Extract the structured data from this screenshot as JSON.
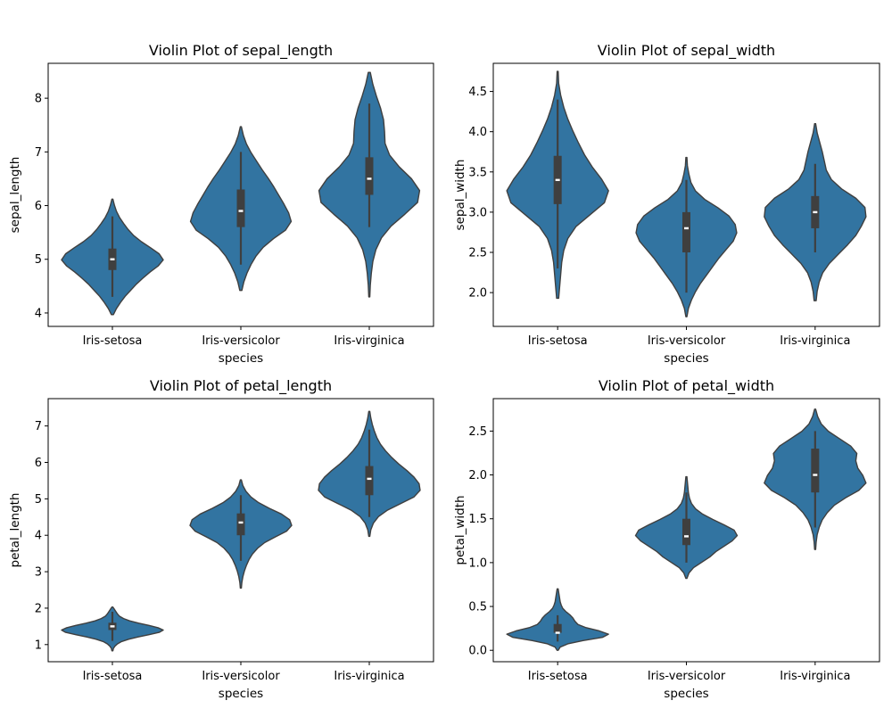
{
  "style": {
    "violin_fill": "#3274a1",
    "outline": "#3f3f3f",
    "box": "#3f3f3f",
    "median": "#ffffff"
  },
  "chart_data": [
    {
      "type": "violin",
      "title": "Violin Plot of sepal_length",
      "xlabel": "species",
      "ylabel": "sepal_length",
      "categories": [
        "Iris-setosa",
        "Iris-versicolor",
        "Iris-virginica"
      ],
      "ylim": [
        3.75,
        8.65
      ],
      "yticks": [
        4,
        5,
        6,
        7,
        8
      ],
      "yticklabels": [
        "4",
        "5",
        "6",
        "7",
        "8"
      ],
      "grid": false,
      "violins": [
        {
          "category": "Iris-setosa",
          "kde_range": [
            3.97,
            6.12
          ],
          "density": [
            0.02,
            0.08,
            0.16,
            0.25,
            0.36,
            0.47,
            0.6,
            0.74,
            0.9,
            1.0,
            0.92,
            0.75,
            0.57,
            0.42,
            0.31,
            0.22,
            0.14,
            0.08,
            0.04,
            0.01
          ],
          "min": 4.3,
          "q1": 4.8,
          "median": 5.0,
          "q3": 5.2,
          "max": 5.8
        },
        {
          "category": "Iris-versicolor",
          "kde_range": [
            4.42,
            7.47
          ],
          "density": [
            0.02,
            0.06,
            0.12,
            0.2,
            0.3,
            0.44,
            0.64,
            0.88,
            0.99,
            0.94,
            0.85,
            0.75,
            0.65,
            0.54,
            0.42,
            0.31,
            0.2,
            0.11,
            0.05,
            0.01
          ],
          "min": 4.9,
          "q1": 5.6,
          "median": 5.9,
          "q3": 6.3,
          "max": 7.0
        },
        {
          "category": "Iris-virginica",
          "kde_range": [
            4.3,
            8.48
          ],
          "density": [
            0.01,
            0.02,
            0.04,
            0.07,
            0.13,
            0.24,
            0.43,
            0.7,
            0.95,
            0.99,
            0.83,
            0.59,
            0.4,
            0.31,
            0.3,
            0.28,
            0.22,
            0.14,
            0.07,
            0.02
          ],
          "min": 5.6,
          "q1": 6.2,
          "median": 6.5,
          "q3": 6.9,
          "max": 7.9
        }
      ]
    },
    {
      "type": "violin",
      "title": "Violin Plot of sepal_width",
      "xlabel": "species",
      "ylabel": "sepal_width",
      "categories": [
        "Iris-setosa",
        "Iris-versicolor",
        "Iris-virginica"
      ],
      "ylim": [
        1.58,
        4.85
      ],
      "yticks": [
        2.0,
        2.5,
        3.0,
        3.5,
        4.0,
        4.5
      ],
      "yticklabels": [
        "2.0",
        "2.5",
        "3.0",
        "3.5",
        "4.0",
        "4.5"
      ],
      "grid": false,
      "violins": [
        {
          "category": "Iris-setosa",
          "kde_range": [
            1.93,
            4.75
          ],
          "density": [
            0.02,
            0.04,
            0.06,
            0.08,
            0.12,
            0.2,
            0.36,
            0.64,
            0.92,
            1.0,
            0.86,
            0.68,
            0.53,
            0.41,
            0.3,
            0.2,
            0.12,
            0.06,
            0.02,
            0.01
          ],
          "min": 2.3,
          "q1": 3.1,
          "median": 3.4,
          "q3": 3.7,
          "max": 4.4
        },
        {
          "category": "Iris-versicolor",
          "kde_range": [
            1.7,
            3.68
          ],
          "density": [
            0.01,
            0.04,
            0.1,
            0.18,
            0.28,
            0.4,
            0.52,
            0.64,
            0.78,
            0.92,
            0.99,
            0.96,
            0.84,
            0.62,
            0.36,
            0.18,
            0.09,
            0.05,
            0.02,
            0.01
          ],
          "min": 2.0,
          "q1": 2.5,
          "median": 2.8,
          "q3": 3.0,
          "max": 3.4
        },
        {
          "category": "Iris-virginica",
          "kde_range": [
            1.9,
            4.1
          ],
          "density": [
            0.02,
            0.04,
            0.08,
            0.15,
            0.28,
            0.46,
            0.64,
            0.8,
            0.91,
            1.0,
            0.98,
            0.8,
            0.52,
            0.32,
            0.22,
            0.18,
            0.14,
            0.09,
            0.04,
            0.01
          ],
          "min": 2.5,
          "q1": 2.8,
          "median": 3.0,
          "q3": 3.2,
          "max": 3.6
        }
      ]
    },
    {
      "type": "violin",
      "title": "Violin Plot of petal_length",
      "xlabel": "species",
      "ylabel": "petal_length",
      "categories": [
        "Iris-setosa",
        "Iris-versicolor",
        "Iris-virginica"
      ],
      "ylim": [
        0.53,
        7.75
      ],
      "yticks": [
        1,
        2,
        3,
        4,
        5,
        6,
        7
      ],
      "yticklabels": [
        "1",
        "2",
        "3",
        "4",
        "5",
        "6",
        "7"
      ],
      "grid": false,
      "violins": [
        {
          "category": "Iris-setosa",
          "kde_range": [
            0.83,
            2.03
          ],
          "density": [
            0.01,
            0.02,
            0.05,
            0.1,
            0.18,
            0.32,
            0.5,
            0.72,
            0.92,
            1.0,
            0.9,
            0.72,
            0.52,
            0.34,
            0.22,
            0.14,
            0.1,
            0.07,
            0.04,
            0.01
          ],
          "min": 1.1,
          "q1": 1.4,
          "median": 1.5,
          "q3": 1.6,
          "max": 1.9
        },
        {
          "category": "Iris-versicolor",
          "kde_range": [
            2.55,
            5.52
          ],
          "density": [
            0.01,
            0.02,
            0.04,
            0.07,
            0.11,
            0.16,
            0.23,
            0.33,
            0.47,
            0.68,
            0.9,
            1.0,
            0.96,
            0.8,
            0.56,
            0.35,
            0.2,
            0.1,
            0.04,
            0.01
          ],
          "min": 3.3,
          "q1": 4.0,
          "median": 4.35,
          "q3": 4.6,
          "max": 5.1
        },
        {
          "category": "Iris-virginica",
          "kde_range": [
            3.97,
            7.4
          ],
          "density": [
            0.01,
            0.03,
            0.08,
            0.18,
            0.36,
            0.62,
            0.88,
            1.0,
            0.98,
            0.88,
            0.74,
            0.58,
            0.44,
            0.32,
            0.22,
            0.15,
            0.1,
            0.06,
            0.03,
            0.01
          ],
          "min": 4.5,
          "q1": 5.1,
          "median": 5.55,
          "q3": 5.9,
          "max": 6.9
        }
      ]
    },
    {
      "type": "violin",
      "title": "Violin Plot of petal_width",
      "xlabel": "species",
      "ylabel": "petal_width",
      "categories": [
        "Iris-setosa",
        "Iris-versicolor",
        "Iris-virginica"
      ],
      "ylim": [
        -0.13,
        2.87
      ],
      "yticks": [
        0.0,
        0.5,
        1.0,
        1.5,
        2.0,
        2.5
      ],
      "yticklabels": [
        "0.0",
        "0.5",
        "1.0",
        "1.5",
        "2.0",
        "2.5"
      ],
      "grid": false,
      "violins": [
        {
          "category": "Iris-setosa",
          "kde_range": [
            0.0,
            0.7
          ],
          "density": [
            0.01,
            0.05,
            0.2,
            0.5,
            0.88,
            1.0,
            0.82,
            0.56,
            0.4,
            0.34,
            0.3,
            0.24,
            0.16,
            0.1,
            0.07,
            0.05,
            0.04,
            0.03,
            0.02,
            0.01
          ],
          "min": 0.1,
          "q1": 0.2,
          "median": 0.2,
          "q3": 0.3,
          "max": 0.4
        },
        {
          "category": "Iris-versicolor",
          "kde_range": [
            0.82,
            1.98
          ],
          "density": [
            0.01,
            0.05,
            0.14,
            0.3,
            0.46,
            0.58,
            0.74,
            0.9,
            1.0,
            0.94,
            0.74,
            0.52,
            0.32,
            0.18,
            0.1,
            0.06,
            0.04,
            0.03,
            0.02,
            0.01
          ],
          "min": 1.0,
          "q1": 1.2,
          "median": 1.3,
          "q3": 1.5,
          "max": 1.8
        },
        {
          "category": "Iris-virginica",
          "kde_range": [
            1.15,
            2.75
          ],
          "density": [
            0.01,
            0.02,
            0.04,
            0.08,
            0.14,
            0.24,
            0.38,
            0.6,
            0.86,
            1.0,
            0.94,
            0.84,
            0.8,
            0.82,
            0.7,
            0.48,
            0.26,
            0.12,
            0.05,
            0.01
          ],
          "min": 1.4,
          "q1": 1.8,
          "median": 2.0,
          "q3": 2.3,
          "max": 2.5
        }
      ]
    }
  ]
}
